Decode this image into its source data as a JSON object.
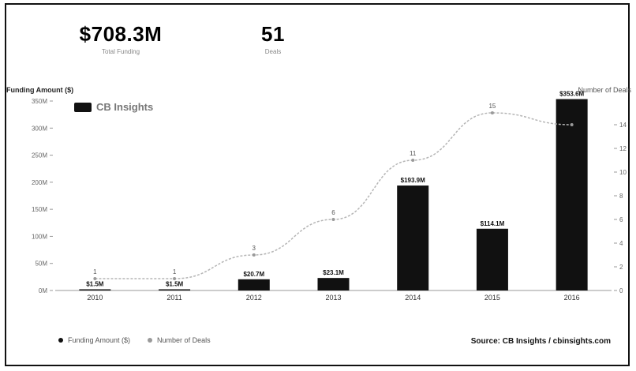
{
  "kpis": {
    "funding": {
      "value": "$708.3M",
      "label": "Total Funding"
    },
    "deals": {
      "value": "51",
      "label": "Deals"
    }
  },
  "watermark": {
    "text": "CB Insights"
  },
  "legend": [
    {
      "label": "Funding Amount ($)",
      "color": "#111111"
    },
    {
      "label": "Number of Deals",
      "color": "#9a9a9a"
    }
  ],
  "source": "Source: CB Insights / cbinsights.com",
  "chart_data": {
    "type": "bar",
    "categories": [
      "2010",
      "2011",
      "2012",
      "2013",
      "2014",
      "2015",
      "2016"
    ],
    "series": [
      {
        "name": "Funding Amount ($)",
        "axis": "left",
        "type": "bar",
        "values": [
          1.5,
          1.5,
          20.7,
          23.1,
          193.9,
          114.1,
          353.6
        ],
        "data_labels": [
          "$1.5M",
          "$1.5M",
          "$20.7M",
          "$23.1M",
          "$193.9M",
          "$114.1M",
          "$353.6M"
        ],
        "color": "#111111"
      },
      {
        "name": "Number of Deals",
        "axis": "right",
        "type": "line",
        "values": [
          1,
          1,
          3,
          6,
          11,
          15,
          14
        ],
        "data_labels": [
          "1",
          "1",
          "3",
          "6",
          "11",
          "15",
          ""
        ],
        "color": "#b5b5b5"
      }
    ],
    "ylabel": "Funding Amount ($)",
    "y2label": "Number of Deals",
    "ylim": [
      0,
      350
    ],
    "yticks": [
      0,
      50,
      100,
      150,
      200,
      250,
      300,
      350
    ],
    "ytick_labels": [
      "0M",
      "50M",
      "100M",
      "150M",
      "200M",
      "250M",
      "300M",
      "350M"
    ],
    "y2lim": [
      0,
      16
    ],
    "y2ticks": [
      0,
      2,
      4,
      6,
      8,
      10,
      12,
      14
    ],
    "y2tick_labels": [
      "0",
      "2",
      "4",
      "6",
      "8",
      "10",
      "12",
      "14"
    ],
    "grid": false,
    "legend_position": "bottom-left"
  }
}
